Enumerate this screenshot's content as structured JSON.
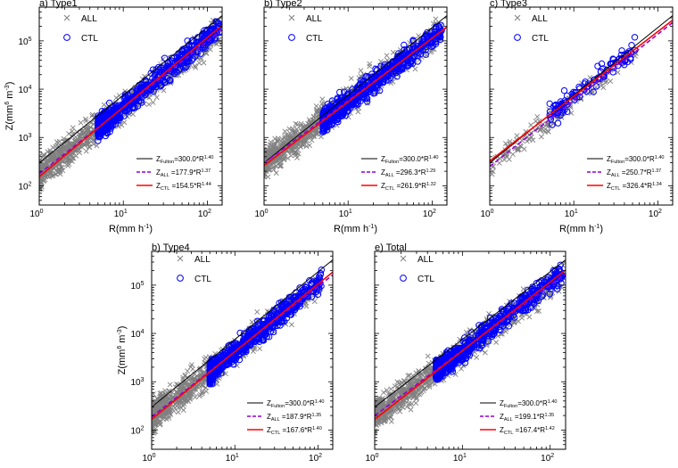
{
  "chart_data": [
    {
      "type": "scatter",
      "panel": "a) Type1",
      "xlabel": "R(mm h",
      "xlabel_sup": "-1",
      "xlabel_end": ")",
      "ylabel": "Z(mm",
      "ylabel_sup1": "6",
      "ylabel_mid": " m",
      "ylabel_sup2": "-3",
      "ylabel_end": ")",
      "x_scale": "log",
      "y_scale": "log",
      "xlim": [
        1,
        150
      ],
      "ylim": [
        40,
        500000
      ],
      "xticks": [
        {
          "v": 1,
          "t": "10",
          "e": "0"
        },
        {
          "v": 10,
          "t": "10",
          "e": "1"
        },
        {
          "v": 100,
          "t": "10",
          "e": "2"
        }
      ],
      "yticks": [
        {
          "v": 100,
          "t": "10",
          "e": "2"
        },
        {
          "v": 1000,
          "t": "10",
          "e": "3"
        },
        {
          "v": 10000,
          "t": "10",
          "e": "4"
        },
        {
          "v": 100000,
          "t": "10",
          "e": "5"
        }
      ],
      "legend": [
        {
          "name": "ALL",
          "marker": "x",
          "color": "#808080"
        },
        {
          "name": "CTL",
          "marker": "o",
          "color": "#0000ff"
        }
      ],
      "series": [
        {
          "name": "ALL",
          "marker": "x",
          "color": "#808080",
          "x_range": [
            1,
            140
          ],
          "y_range_at_1": [
            40,
            1800
          ],
          "cloud_center": [
            1.8,
            200
          ]
        },
        {
          "name": "CTL",
          "marker": "o",
          "color": "#0000ff",
          "x_range": [
            5,
            140
          ],
          "y_range": [
            700,
            150000
          ]
        }
      ],
      "fits": [
        {
          "name": "Fulton",
          "a": 300.0,
          "b": 1.4,
          "color": "#000000",
          "style": "solid",
          "pre": "Z",
          "sub": "Fulton",
          "mid": "=300.0*R",
          "exp": "1.40"
        },
        {
          "name": "ALL",
          "a": 177.9,
          "b": 1.37,
          "color": "#9400d3",
          "style": "dashed",
          "pre": "Z",
          "sub": "ALL",
          "mid": " =177.9*R",
          "exp": "1.37"
        },
        {
          "name": "CTL",
          "a": 154.5,
          "b": 1.44,
          "color": "#ff0000",
          "style": "solid",
          "pre": "Z",
          "sub": "CTL",
          "mid": " =154.5*R",
          "exp": "1.44"
        }
      ]
    },
    {
      "type": "scatter",
      "panel": "b) Type2",
      "xlabel": "R(mm h",
      "xlabel_sup": "-1",
      "xlabel_end": ")",
      "x_scale": "log",
      "y_scale": "log",
      "xlim": [
        1,
        150
      ],
      "ylim": [
        40,
        500000
      ],
      "xticks": [
        {
          "v": 1,
          "t": "10",
          "e": "0"
        },
        {
          "v": 10,
          "t": "10",
          "e": "1"
        },
        {
          "v": 100,
          "t": "10",
          "e": "2"
        }
      ],
      "legend": [
        {
          "name": "ALL",
          "marker": "x",
          "color": "#808080"
        },
        {
          "name": "CTL",
          "marker": "o",
          "color": "#0000ff"
        }
      ],
      "series": [
        {
          "name": "ALL",
          "marker": "x",
          "color": "#808080",
          "x_range": [
            1,
            130
          ]
        },
        {
          "name": "CTL",
          "marker": "o",
          "color": "#0000ff",
          "x_range": [
            5,
            130
          ],
          "y_range": [
            500,
            120000
          ]
        }
      ],
      "fits": [
        {
          "name": "Fulton",
          "a": 300.0,
          "b": 1.4,
          "color": "#000000",
          "style": "solid",
          "pre": "Z",
          "sub": "Fulton",
          "mid": "=300.0*R",
          "exp": "1.40"
        },
        {
          "name": "ALL",
          "a": 296.3,
          "b": 1.29,
          "color": "#9400d3",
          "style": "dashed",
          "pre": "Z",
          "sub": "ALL",
          "mid": " =296.3*R",
          "exp": "1.29"
        },
        {
          "name": "CTL",
          "a": 261.9,
          "b": 1.32,
          "color": "#ff0000",
          "style": "solid",
          "pre": "Z",
          "sub": "CTL",
          "mid": " =261.9*R",
          "exp": "1.32"
        }
      ]
    },
    {
      "type": "scatter",
      "panel": "c) Type3",
      "xlabel": "R(mm h",
      "xlabel_sup": "-1",
      "xlabel_end": ")",
      "x_scale": "log",
      "y_scale": "log",
      "xlim": [
        1,
        150
      ],
      "ylim": [
        40,
        500000
      ],
      "xticks": [
        {
          "v": 1,
          "t": "10",
          "e": "0"
        },
        {
          "v": 10,
          "t": "10",
          "e": "1"
        },
        {
          "v": 100,
          "t": "10",
          "e": "2"
        }
      ],
      "legend": [
        {
          "name": "ALL",
          "marker": "x",
          "color": "#808080"
        },
        {
          "name": "CTL",
          "marker": "o",
          "color": "#0000ff"
        }
      ],
      "series": [
        {
          "name": "ALL",
          "marker": "x",
          "color": "#808080",
          "x_range": [
            1,
            55
          ]
        },
        {
          "name": "CTL",
          "marker": "o",
          "color": "#0000ff",
          "x_range": [
            5,
            55
          ],
          "y_range": [
            2000,
            70000
          ]
        }
      ],
      "fits": [
        {
          "name": "Fulton",
          "a": 300.0,
          "b": 1.4,
          "color": "#000000",
          "style": "solid",
          "pre": "Z",
          "sub": "Fulton",
          "mid": "=300.0*R",
          "exp": "1.40"
        },
        {
          "name": "ALL",
          "a": 250.7,
          "b": 1.37,
          "color": "#9400d3",
          "style": "dashed",
          "pre": "Z",
          "sub": "ALL",
          "mid": " =250.7*R",
          "exp": "1.37"
        },
        {
          "name": "CTL",
          "a": 326.4,
          "b": 1.34,
          "color": "#ff0000",
          "style": "solid",
          "pre": "Z",
          "sub": "CTL",
          "mid": " =326.4*R",
          "exp": "1.34"
        }
      ]
    },
    {
      "type": "scatter",
      "panel": "b) Type4",
      "xlabel": "R(mm h",
      "xlabel_sup": "-1",
      "xlabel_end": ")",
      "ylabel": "Z(mm",
      "ylabel_sup1": "6",
      "ylabel_mid": " m",
      "ylabel_sup2": "-3",
      "ylabel_end": ")",
      "x_scale": "log",
      "y_scale": "log",
      "xlim": [
        1,
        150
      ],
      "ylim": [
        40,
        500000
      ],
      "xticks": [
        {
          "v": 1,
          "t": "10",
          "e": "0"
        },
        {
          "v": 10,
          "t": "10",
          "e": "1"
        },
        {
          "v": 100,
          "t": "10",
          "e": "2"
        }
      ],
      "yticks": [
        {
          "v": 100,
          "t": "10",
          "e": "2"
        },
        {
          "v": 1000,
          "t": "10",
          "e": "3"
        },
        {
          "v": 10000,
          "t": "10",
          "e": "4"
        },
        {
          "v": 100000,
          "t": "10",
          "e": "5"
        }
      ],
      "legend": [
        {
          "name": "ALL",
          "marker": "x",
          "color": "#808080"
        },
        {
          "name": "CTL",
          "marker": "o",
          "color": "#0000ff"
        }
      ],
      "series": [
        {
          "name": "ALL",
          "marker": "x",
          "color": "#808080",
          "x_range": [
            1,
            110
          ]
        },
        {
          "name": "CTL",
          "marker": "o",
          "color": "#0000ff",
          "x_range": [
            5,
            110
          ],
          "y_range": [
            500,
            200000
          ]
        }
      ],
      "fits": [
        {
          "name": "Fulton",
          "a": 300.0,
          "b": 1.4,
          "color": "#000000",
          "style": "solid",
          "pre": "Z",
          "sub": "Fulton",
          "mid": "=300.0*R",
          "exp": "1.40"
        },
        {
          "name": "ALL",
          "a": 187.9,
          "b": 1.35,
          "color": "#9400d3",
          "style": "dashed",
          "pre": "Z",
          "sub": "ALL",
          "mid": " =187.9*R",
          "exp": "1.35"
        },
        {
          "name": "CTL",
          "a": 167.6,
          "b": 1.4,
          "color": "#ff0000",
          "style": "solid",
          "pre": "Z",
          "sub": "CTL",
          "mid": " =167.6*R",
          "exp": "1.40"
        }
      ]
    },
    {
      "type": "scatter",
      "panel": "e) Total",
      "xlabel": "R(mm h",
      "xlabel_sup": "-1",
      "xlabel_end": ")",
      "x_scale": "log",
      "y_scale": "log",
      "xlim": [
        1,
        150
      ],
      "ylim": [
        40,
        500000
      ],
      "xticks": [
        {
          "v": 1,
          "t": "10",
          "e": "0"
        },
        {
          "v": 10,
          "t": "10",
          "e": "1"
        },
        {
          "v": 100,
          "t": "10",
          "e": "2"
        }
      ],
      "legend": [
        {
          "name": "ALL",
          "marker": "x",
          "color": "#808080"
        },
        {
          "name": "CTL",
          "marker": "o",
          "color": "#0000ff"
        }
      ],
      "series": [
        {
          "name": "ALL",
          "marker": "x",
          "color": "#808080",
          "x_range": [
            1,
            140
          ]
        },
        {
          "name": "CTL",
          "marker": "o",
          "color": "#0000ff",
          "x_range": [
            5,
            140
          ],
          "y_range": [
            500,
            200000
          ]
        }
      ],
      "fits": [
        {
          "name": "Fulton",
          "a": 300.0,
          "b": 1.4,
          "color": "#000000",
          "style": "solid",
          "pre": "Z",
          "sub": "Fulton",
          "mid": "=300.0*R",
          "exp": "1.40"
        },
        {
          "name": "ALL",
          "a": 199.1,
          "b": 1.35,
          "color": "#9400d3",
          "style": "dashed",
          "pre": "Z",
          "sub": "ALL",
          "mid": " =199.1*R",
          "exp": "1.35"
        },
        {
          "name": "CTL",
          "a": 167.4,
          "b": 1.42,
          "color": "#ff0000",
          "style": "solid",
          "pre": "Z",
          "sub": "CTL",
          "mid": " =167.4*R",
          "exp": "1.42"
        }
      ]
    }
  ]
}
